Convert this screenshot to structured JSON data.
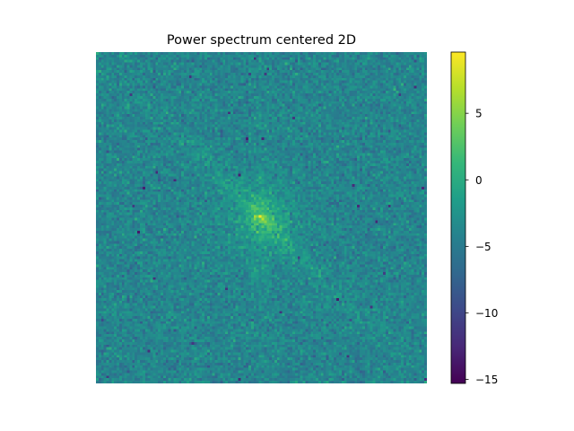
{
  "chart_data": {
    "type": "heatmap",
    "title": "Power spectrum centered 2D",
    "xlabel": "",
    "ylabel": "",
    "colormap": "viridis",
    "colorbar": {
      "vmin": -15.3,
      "vmax": 9.6,
      "ticks": [
        5,
        0,
        -5,
        -10,
        -15
      ],
      "tick_labels": [
        "5",
        "0",
        "−5",
        "−10",
        "−15"
      ]
    },
    "matrix_description_values": {
      "background_mean": -4.0,
      "background_noise_sd": 1.4,
      "center_peak": 9.6,
      "center_halo": 3.5,
      "diagonal_streak_level": -1.0,
      "vertical_streak_level": -2.0,
      "deep_minima": -12.0
    },
    "grid": false,
    "axes_visible": false
  },
  "colors": {
    "viridis": [
      "#440154",
      "#482878",
      "#3e4989",
      "#31688e",
      "#26828e",
      "#1f9e89",
      "#35b779",
      "#6ece58",
      "#b5de2b",
      "#fde725"
    ]
  }
}
